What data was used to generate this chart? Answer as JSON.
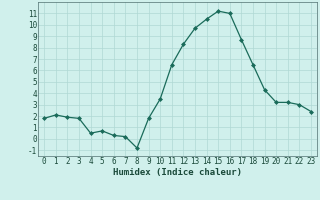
{
  "x": [
    0,
    1,
    2,
    3,
    4,
    5,
    6,
    7,
    8,
    9,
    10,
    11,
    12,
    13,
    14,
    15,
    16,
    17,
    18,
    19,
    20,
    21,
    22,
    23
  ],
  "y": [
    1.8,
    2.1,
    1.9,
    1.8,
    0.5,
    0.7,
    0.3,
    0.2,
    -0.8,
    1.8,
    3.5,
    6.5,
    8.3,
    9.7,
    10.5,
    11.2,
    11.0,
    8.7,
    6.5,
    4.3,
    3.2,
    3.2,
    3.0,
    2.4
  ],
  "line_color": "#1a6b5a",
  "marker": "D",
  "marker_size": 2.0,
  "background_color": "#d0f0ec",
  "grid_color": "#b0d8d4",
  "xlabel": "Humidex (Indice chaleur)",
  "xlim": [
    -0.5,
    23.5
  ],
  "ylim": [
    -1.5,
    12.0
  ],
  "yticks": [
    -1,
    0,
    1,
    2,
    3,
    4,
    5,
    6,
    7,
    8,
    9,
    10,
    11
  ],
  "xticks": [
    0,
    1,
    2,
    3,
    4,
    5,
    6,
    7,
    8,
    9,
    10,
    11,
    12,
    13,
    14,
    15,
    16,
    17,
    18,
    19,
    20,
    21,
    22,
    23
  ],
  "xlabel_fontsize": 6.5,
  "tick_fontsize": 5.5,
  "label_color": "#1a4a3a",
  "spine_color": "#507070",
  "linewidth": 0.9
}
